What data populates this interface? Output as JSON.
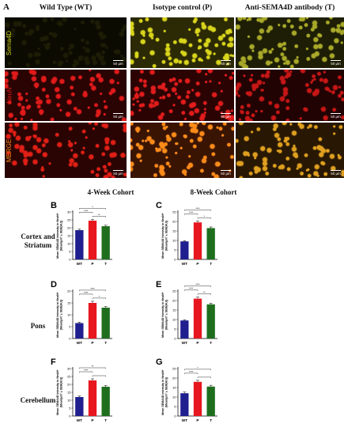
{
  "figure": {
    "panel_a_letter": "A",
    "columns": [
      "Wild Type (WT)",
      "Isotype control (P)",
      "Anti-SEMA4D antibody (T)"
    ],
    "rows": [
      {
        "label": "Sema4D",
        "color": "#d8d81a"
      },
      {
        "label": "NeuN",
        "color": "#e01a1a"
      },
      {
        "label": "MERGE",
        "color": "#ff8c1a"
      }
    ],
    "scale_bar": "50 μm",
    "cohorts": [
      "4-Week Cohort",
      "8-Week Cohort"
    ],
    "regions": [
      "Cortex and Striatum",
      "Pons",
      "Cerebellum"
    ]
  },
  "chart_data": [
    {
      "panel": "B",
      "type": "bar",
      "categories": [
        "WT",
        "P",
        "T"
      ],
      "values": [
        18.5,
        24.5,
        21.0
      ],
      "errors": [
        0.6,
        0.8,
        0.6
      ],
      "ylim": [
        0,
        30
      ],
      "yticks": [
        0,
        5,
        10,
        15,
        20,
        25,
        30
      ],
      "ylabel": "Mean SEMA4D Intensity in NeuN+ (Mean/μm² ± SEM(AU))",
      "colors": [
        "#1f1f8f",
        "#e8171f",
        "#1e6e1e"
      ],
      "sig": [
        [
          "WT",
          "P",
          "****"
        ],
        [
          "WT",
          "T",
          "*"
        ],
        [
          "P",
          "T",
          "**"
        ]
      ]
    },
    {
      "panel": "C",
      "type": "bar",
      "categories": [
        "WT",
        "P",
        "T"
      ],
      "values": [
        9.5,
        19.5,
        16.5
      ],
      "errors": [
        0.4,
        0.7,
        0.6
      ],
      "ylim": [
        0,
        25
      ],
      "yticks": [
        0,
        5,
        10,
        15,
        20,
        25
      ],
      "ylabel": "Mean SEMA4D Intensity in NeuN+ (Mean/μm² ± SEM(AU))",
      "colors": [
        "#1f1f8f",
        "#e8171f",
        "#1e6e1e"
      ],
      "sig": [
        [
          "WT",
          "P",
          "****"
        ],
        [
          "WT",
          "T",
          "****"
        ],
        [
          "P",
          "T",
          "*"
        ]
      ]
    },
    {
      "panel": "D",
      "type": "bar",
      "categories": [
        "WT",
        "P",
        "T"
      ],
      "values": [
        6.5,
        15.0,
        13.0
      ],
      "errors": [
        0.4,
        0.7,
        0.5
      ],
      "ylim": [
        0,
        20
      ],
      "yticks": [
        0,
        5,
        10,
        15,
        20
      ],
      "ylabel": "Mean SEMA4D Intensity in NeuN+ (Mean/μm² ± SEM(AU))",
      "colors": [
        "#1f1f8f",
        "#e8171f",
        "#1e6e1e"
      ],
      "sig": [
        [
          "WT",
          "P",
          "****"
        ],
        [
          "WT",
          "T",
          "****"
        ],
        [
          "P",
          "T",
          "*"
        ]
      ]
    },
    {
      "panel": "E",
      "type": "bar",
      "categories": [
        "WT",
        "P",
        "T"
      ],
      "values": [
        9.5,
        21.0,
        18.0
      ],
      "errors": [
        0.4,
        0.8,
        0.6
      ],
      "ylim": [
        0,
        25
      ],
      "yticks": [
        0,
        5,
        10,
        15,
        20,
        25
      ],
      "ylabel": "Mean SEMA4D Intensity in NeuN+ (Mean/μm² ± SEM(AU))",
      "colors": [
        "#1f1f8f",
        "#e8171f",
        "#1e6e1e"
      ],
      "sig": [
        [
          "WT",
          "P",
          "****"
        ],
        [
          "WT",
          "T",
          "****"
        ],
        [
          "P",
          "T",
          "**"
        ]
      ]
    },
    {
      "panel": "F",
      "type": "bar",
      "categories": [
        "WT",
        "P",
        "T"
      ],
      "values": [
        12.0,
        22.5,
        18.5
      ],
      "errors": [
        0.6,
        1.0,
        0.8
      ],
      "ylim": [
        0,
        30
      ],
      "yticks": [
        0,
        5,
        10,
        15,
        20,
        25,
        30
      ],
      "ylabel": "Mean SEMA4D Intensity in NeuN+ (Mean/μm² ± SEM(AU))",
      "colors": [
        "#1f1f8f",
        "#e8171f",
        "#1e6e1e"
      ],
      "sig": [
        [
          "WT",
          "P",
          "****"
        ],
        [
          "WT",
          "T",
          "**"
        ],
        [
          "P",
          "T",
          ""
        ]
      ]
    },
    {
      "panel": "G",
      "type": "bar",
      "categories": [
        "WT",
        "P",
        "T"
      ],
      "values": [
        12.0,
        18.0,
        15.5
      ],
      "errors": [
        0.6,
        0.8,
        0.7
      ],
      "ylim": [
        0,
        25
      ],
      "yticks": [
        0,
        5,
        10,
        15,
        20,
        25
      ],
      "ylabel": "Mean SEMA4D Intensity in NeuN+ (Mean/μm² ± SEM(AU))",
      "colors": [
        "#1f1f8f",
        "#e8171f",
        "#1e6e1e"
      ],
      "sig": [
        [
          "WT",
          "P",
          "****"
        ],
        [
          "WT",
          "T",
          "*"
        ],
        [
          "P",
          "T",
          ""
        ]
      ]
    }
  ]
}
